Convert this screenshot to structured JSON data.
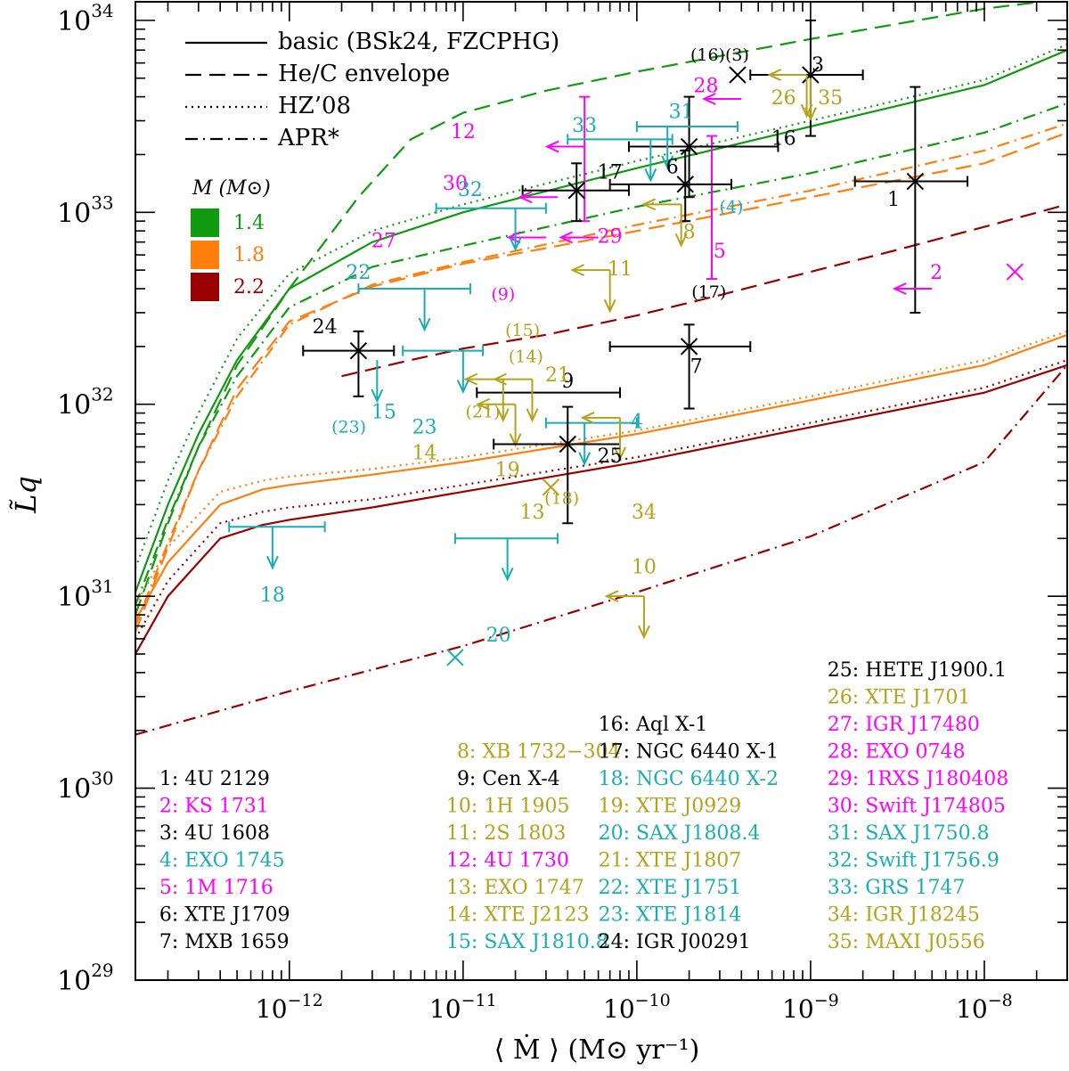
{
  "colors": {
    "m14": "#109a10",
    "m18": "#ff7f0e",
    "m22": "#990000",
    "cyan": "#1aadb4",
    "magenta": "#ff00ff",
    "olive": "#b5a21b",
    "black": "#000000"
  },
  "chart_data": {
    "type": "scatter",
    "xlabel": "⟨ Ṁ ⟩  (M⊙ yr⁻¹)",
    "ylabel": "L̃q",
    "xscale": "log",
    "yscale": "log",
    "xlim": [
      1.3e-13,
      3e-08
    ],
    "ylim": [
      1e+29,
      1.25e+34
    ],
    "xticks": [
      {
        "v": 1e-12,
        "base": "10",
        "exp": "−12"
      },
      {
        "v": 1e-11,
        "base": "10",
        "exp": "−11"
      },
      {
        "v": 1e-10,
        "base": "10",
        "exp": "−10"
      },
      {
        "v": 1e-09,
        "base": "10",
        "exp": "−9"
      },
      {
        "v": 1e-08,
        "base": "10",
        "exp": "−8"
      }
    ],
    "yticks": [
      {
        "v": 1e+29,
        "base": "10",
        "exp": "29"
      },
      {
        "v": 1e+30,
        "base": "10",
        "exp": "30"
      },
      {
        "v": 1e+31,
        "base": "10",
        "exp": "31"
      },
      {
        "v": 1e+32,
        "base": "10",
        "exp": "32"
      },
      {
        "v": 1e+33,
        "base": "10",
        "exp": "33"
      },
      {
        "v": 1e+34,
        "base": "10",
        "exp": "34"
      }
    ],
    "style_legend": [
      {
        "label": "basic (BSk24, FZCPHG)",
        "dash": "solid"
      },
      {
        "label": "He/C envelope",
        "dash": "dashed"
      },
      {
        "label": "HZ’08",
        "dash": "dotted"
      },
      {
        "label": "APR*",
        "dash": "dashdot"
      }
    ],
    "mass_legend": {
      "title": "M (M⊙)",
      "entries": [
        {
          "label": "1.4",
          "color": "m14"
        },
        {
          "label": "1.8",
          "color": "m18"
        },
        {
          "label": "2.2",
          "color": "m22"
        }
      ]
    },
    "series": [
      {
        "name": "1.4 basic",
        "color": "m14",
        "dash": "solid",
        "x": [
          1.3e-13,
          2e-13,
          3e-13,
          5e-13,
          1e-12,
          3e-12,
          1e-11,
          1e-10,
          1e-09,
          1e-08,
          3e-08
        ],
        "y": [
          1.05e+31,
          3e+31,
          7e+31,
          1.7e+32,
          4e+32,
          7e+32,
          1e+33,
          1.7e+33,
          2.8e+33,
          4.6e+33,
          7e+33
        ]
      },
      {
        "name": "1.4 HZ08",
        "color": "m14",
        "dash": "dotted",
        "x": [
          1.3e-13,
          2e-13,
          3e-13,
          5e-13,
          1e-12,
          3e-12,
          1e-11,
          1e-10,
          1e-09,
          1e-08,
          3e-08
        ],
        "y": [
          1.4e+31,
          4e+31,
          9e+31,
          2.2e+32,
          4.8e+32,
          8e+32,
          1.1e+33,
          1.85e+33,
          3e+33,
          4.9e+33,
          7.5e+33
        ]
      },
      {
        "name": "1.4 He/C",
        "color": "m14",
        "dash": "dashed",
        "x": [
          1.3e-13,
          2e-13,
          3e-13,
          5e-13,
          1e-12,
          2.5e-12,
          5e-12,
          1e-11,
          3e-11,
          1e-10,
          1e-09,
          1e-08,
          3e-08
        ],
        "y": [
          8e+30,
          2.4e+31,
          6e+31,
          1.6e+32,
          4e+32,
          1.2e+33,
          2.4e+33,
          3.3e+33,
          4.3e+33,
          5.4e+33,
          8e+33,
          1.15e+34,
          1.3e+34
        ]
      },
      {
        "name": "1.4 APR",
        "color": "m14",
        "dash": "dashdot",
        "x": [
          1.3e-13,
          2e-13,
          3e-13,
          5e-13,
          1e-12,
          3e-12,
          1e-11,
          1e-10,
          1e-09,
          1e-08,
          3e-08
        ],
        "y": [
          9e+30,
          2.5e+31,
          6e+31,
          1.4e+32,
          3.2e+32,
          5.2e+32,
          6.7e+32,
          1.07e+33,
          1.6e+33,
          2.6e+33,
          3.7e+33
        ]
      },
      {
        "name": "1.8 basic",
        "color": "m18",
        "dash": "solid",
        "x": [
          1.3e-13,
          2e-13,
          4e-13,
          7e-13,
          1e-12,
          3e-12,
          1e-11,
          1e-10,
          1e-09,
          1e-08,
          3e-08
        ],
        "y": [
          7.5e+30,
          1.5e+31,
          3e+31,
          3.6e+31,
          3.8e+31,
          4.3e+31,
          5e+31,
          7e+31,
          1.05e+32,
          1.6e+32,
          2.3e+32
        ]
      },
      {
        "name": "1.8 HZ08",
        "color": "m18",
        "dash": "dotted",
        "x": [
          1.3e-13,
          2e-13,
          4e-13,
          7e-13,
          1e-12,
          3e-12,
          1e-11,
          1e-10,
          1e-09,
          1e-08,
          3e-08
        ],
        "y": [
          9e+30,
          1.8e+31,
          3.5e+31,
          4e+31,
          4.2e+31,
          4.6e+31,
          5.3e+31,
          7.3e+31,
          1.1e+32,
          1.7e+32,
          2.4e+32
        ]
      },
      {
        "name": "1.8 He/C",
        "color": "m18",
        "dash": "dashed",
        "x": [
          1.3e-13,
          2e-13,
          3e-13,
          5e-13,
          1e-12,
          3e-12,
          1e-11,
          1e-10,
          1e-09,
          1e-08,
          3e-08
        ],
        "y": [
          6.5e+30,
          1.8e+31,
          4.5e+31,
          1.2e+32,
          2.7e+32,
          4.1e+32,
          5.4e+32,
          8e+32,
          1.2e+33,
          1.8e+33,
          2.6e+33
        ]
      },
      {
        "name": "1.8 APR",
        "color": "m18",
        "dash": "dashdot",
        "x": [
          1.3e-13,
          2e-13,
          3e-13,
          5e-13,
          1e-12,
          3e-12,
          1e-11,
          1e-10,
          1e-09,
          1e-08,
          3e-08
        ],
        "y": [
          7e+30,
          1.9e+31,
          4.5e+31,
          1.1e+32,
          2.6e+32,
          4.2e+32,
          5.5e+32,
          8.6e+32,
          1.3e+33,
          2.1e+33,
          2.9e+33
        ]
      },
      {
        "name": "2.2 basic",
        "color": "m22",
        "dash": "solid",
        "x": [
          1.3e-13,
          2e-13,
          4e-13,
          7e-13,
          1e-12,
          3e-12,
          1e-11,
          1e-10,
          1e-09,
          1e-08,
          3e-08
        ],
        "y": [
          5e+30,
          1e+31,
          2e+31,
          2.35e+31,
          2.5e+31,
          2.9e+31,
          3.5e+31,
          5e+31,
          7.6e+31,
          1.15e+32,
          1.6e+32
        ]
      },
      {
        "name": "2.2 HZ08",
        "color": "m22",
        "dash": "dotted",
        "x": [
          1.3e-13,
          2e-13,
          4e-13,
          7e-13,
          1e-12,
          3e-12,
          1e-11,
          1e-10,
          1e-09,
          1e-08,
          3e-08
        ],
        "y": [
          6e+30,
          1.2e+31,
          2.4e+31,
          2.75e+31,
          2.9e+31,
          3.2e+31,
          3.8e+31,
          5.3e+31,
          8e+31,
          1.22e+32,
          1.7e+32
        ]
      },
      {
        "name": "2.2 He/C",
        "color": "m22",
        "dash": "dashed",
        "x": [
          2e-12,
          5e-12,
          1e-11,
          3e-11,
          1e-10,
          3e-10,
          1e-09,
          3e-09,
          1e-08,
          3e-08
        ],
        "y": [
          1.4e+32,
          1.7e+32,
          1.95e+32,
          2.3e+32,
          2.9e+32,
          3.7e+32,
          4.9e+32,
          6.3e+32,
          8.4e+32,
          1.1e+33
        ]
      },
      {
        "name": "2.2 APR",
        "color": "m22",
        "dash": "dashdot",
        "x": [
          1.3e-13,
          1e-12,
          1e-11,
          1e-10,
          1e-09,
          1e-08,
          3e-08
        ],
        "y": [
          1.9e+30,
          3.2e+30,
          5.5e+30,
          1.05e+31,
          2.05e+31,
          5e+31,
          1.6e+32
        ]
      }
    ],
    "sources": [
      {
        "id": "1",
        "name": "4U 2129",
        "color": "black",
        "x": 4e-09,
        "y": 1.45e+33,
        "xerr": [
          1.8e-09,
          8e-09
        ],
        "yerr": [
          3e+32,
          4.5e+33
        ],
        "label_x": 3e-09,
        "label_y": 1.15e+33
      },
      {
        "id": "2",
        "name": "KS 1731",
        "color": "magenta",
        "x": 5e-09,
        "y": 4e+32,
        "xul": true,
        "cross": [
          1.5e-08,
          4.9e+32
        ],
        "label_x": 5.3e-09,
        "label_y": 4.8e+32
      },
      {
        "id": "3",
        "name": "4U 1608",
        "color": "black",
        "x": 1e-09,
        "y": 5.2e+33,
        "xerr": [
          4.5e-10,
          2e-09
        ],
        "yerr": [
          2.5e+33,
          1e+34
        ],
        "cross": [
          3.8e-10,
          5.2e+33
        ],
        "label_x": 1.1e-09,
        "label_y": 5.8e+33
      },
      {
        "id": "4",
        "name": "EXO 1745",
        "color": "cyan",
        "x": 5e-11,
        "y": 8e+31,
        "xerr": [
          3e-11,
          1e-10
        ],
        "yul": true,
        "label_x": 1e-10,
        "label_y": 8e+31
      },
      {
        "id": "5",
        "name": "1M 1716",
        "color": "magenta",
        "x": 2.7e-10,
        "y": 1.3e+33,
        "yerr": [
          4.5e+32,
          2.5e+33
        ],
        "label_x": 3e-10,
        "label_y": 6.2e+32
      },
      {
        "id": "6",
        "name": "XTE J1709",
        "color": "black",
        "x": 1.9e-10,
        "y": 1.4e+33,
        "xerr": [
          7e-11,
          3.5e-10
        ],
        "yerr": [
          9e+32,
          2.1e+33
        ],
        "label_x": 1.6e-10,
        "label_y": 1.7e+33
      },
      {
        "id": "7",
        "name": "MXB 1659",
        "color": "black",
        "x": 2e-10,
        "y": 2e+32,
        "xerr": [
          7e-11,
          4.5e-10
        ],
        "yerr": [
          9.5e+31,
          2.6e+32
        ],
        "label_x": 2.2e-10,
        "label_y": 1.55e+32
      },
      {
        "id": "8",
        "name": "XB 1732−304",
        "color": "olive",
        "x": 1.8e-10,
        "y": 1.1e+33,
        "xul": true,
        "yul": true,
        "label_x": 2e-10,
        "label_y": 7.8e+32
      },
      {
        "id": "9",
        "name": "Cen X-4",
        "color": "black",
        "x": 1.6e-11,
        "y": 1.15e+32,
        "xerr": [
          1.2e-11,
          8e-11
        ],
        "label_x": 4e-11,
        "label_y": 1.3e+32
      },
      {
        "id": "10",
        "name": "1H 1905",
        "color": "olive",
        "x": 1.1e-10,
        "y": 1e+31,
        "xul": true,
        "yul": true,
        "label_x": 1.1e-10,
        "label_y": 1.4e+31
      },
      {
        "id": "11",
        "name": "2S 1803",
        "color": "olive",
        "x": 7e-11,
        "y": 5e+32,
        "xul": true,
        "yul": true,
        "label_x": 8e-11,
        "label_y": 5e+32
      },
      {
        "id": "12",
        "name": "4U 1730",
        "color": "magenta",
        "x": 5e-11,
        "y": 2.2e+33,
        "xul": true,
        "yerr": [
          9e+32,
          4e+33
        ],
        "label_x": 1e-11,
        "label_y": 2.6e+33
      },
      {
        "id": "13",
        "name": "EXO 1747",
        "color": "olive",
        "x": 3.2e-11,
        "y": 3.7e+31,
        "label_x": 2.5e-11,
        "label_y": 2.7e+31
      },
      {
        "id": "14",
        "name": "XTE J2123",
        "color": "olive",
        "x": 1.7e-11,
        "y": 1.35e+32,
        "xul": true,
        "yul": true,
        "label_x": 6e-12,
        "label_y": 5.5e+31
      },
      {
        "id": "15",
        "name": "SAX J1810.8",
        "color": "cyan",
        "x": 3.2e-12,
        "y": 1.7e+32,
        "yul": true,
        "label_x": 3.5e-12,
        "label_y": 9e+31
      },
      {
        "id": "16",
        "name": "Aql X-1",
        "color": "black",
        "x": 2e-10,
        "y": 2.2e+33,
        "xerr": [
          9e-11,
          6.5e-10
        ],
        "yerr": [
          1.2e+33,
          4e+33
        ],
        "label_x": 7e-10,
        "label_y": 2.4e+33
      },
      {
        "id": "17",
        "name": "NGC 6440 X-1",
        "color": "black",
        "x": 4.5e-11,
        "y": 1.3e+33,
        "xerr": [
          2.2e-11,
          9e-11
        ],
        "yerr": [
          9e+32,
          1.8e+33
        ],
        "label_x": 7e-11,
        "label_y": 1.6e+33
      },
      {
        "id": "18",
        "name": "NGC 6440 X-2",
        "color": "cyan",
        "x": 8e-13,
        "y": 2.3e+31,
        "xerr": [
          4.5e-13,
          1.6e-12
        ],
        "yul": true,
        "label_x": 8e-13,
        "label_y": 1e+31
      },
      {
        "id": "19",
        "name": "XTE J0929",
        "color": "olive",
        "x": 2e-11,
        "y": 1e+32,
        "xul": true,
        "yul": true,
        "label_x": 1.8e-11,
        "label_y": 4.5e+31
      },
      {
        "id": "20",
        "name": "SAX J1808.4",
        "color": "cyan",
        "x": 1.8e-11,
        "y": 2e+31,
        "xerr": [
          9e-12,
          3.5e-11
        ],
        "yul": true,
        "cross": [
          9e-12,
          4.8e+30
        ],
        "label_x": 1.6e-11,
        "label_y": 6.2e+30
      },
      {
        "id": "21",
        "name": "XTE J1807",
        "color": "olive",
        "x": 2.5e-11,
        "y": 1.35e+32,
        "xul": true,
        "yul": true,
        "label_x": 3.5e-11,
        "label_y": 1.4e+32
      },
      {
        "id": "22",
        "name": "XTE J1751",
        "color": "cyan",
        "x": 6e-12,
        "y": 4e+32,
        "xerr": [
          2.5e-12,
          1.1e-11
        ],
        "yul": true,
        "label_x": 2.5e-12,
        "label_y": 4.8e+32
      },
      {
        "id": "23",
        "name": "XTE J1814",
        "color": "cyan",
        "x": 1e-11,
        "y": 1.9e+32,
        "xerr": [
          4.5e-12,
          1.3e-11
        ],
        "yul": true,
        "label_x": 6e-12,
        "label_y": 7.5e+31
      },
      {
        "id": "24",
        "name": "IGR J00291",
        "color": "black",
        "x": 2.5e-12,
        "y": 1.9e+32,
        "xerr": [
          1.2e-12,
          4e-12
        ],
        "yerr": [
          1.1e+32,
          2.4e+32
        ],
        "label_x": 1.6e-12,
        "label_y": 2.5e+32
      },
      {
        "id": "25",
        "name": "HETE J1900.1",
        "color": "black",
        "x": 4e-11,
        "y": 6.2e+31,
        "xerr": [
          1.5e-11,
          8e-11
        ],
        "yerr": [
          2.4e+31,
          9.7e+31
        ],
        "label_x": 7e-11,
        "label_y": 5.3e+31
      },
      {
        "id": "26",
        "name": "XTE J1701",
        "color": "olive",
        "x": 9.5e-10,
        "y": 5.2e+33,
        "xul": true,
        "yul": true,
        "label_x": 7e-10,
        "label_y": 3.9e+33
      },
      {
        "id": "27",
        "name": "IGR J17480",
        "color": "magenta",
        "x": 3e-11,
        "y": 7.4e+32,
        "xul": true,
        "label_x": 3.5e-12,
        "label_y": 7e+32
      },
      {
        "id": "28",
        "name": "EXO 0748",
        "color": "magenta",
        "x": 4e-10,
        "y": 3.9e+33,
        "xul": true,
        "label_x": 2.5e-10,
        "label_y": 4.5e+33
      },
      {
        "id": "29",
        "name": "1RXS J180408",
        "color": "magenta",
        "x": 6e-11,
        "y": 7.4e+32,
        "xul": true,
        "label_x": 7e-11,
        "label_y": 7.4e+32
      },
      {
        "id": "30",
        "name": "Swift J174805",
        "color": "magenta",
        "x": 3.5e-11,
        "y": 1.2e+33,
        "xul": true,
        "label_x": 9e-12,
        "label_y": 1.4e+33
      },
      {
        "id": "31",
        "name": "SAX J1750.8",
        "color": "cyan",
        "x": 1.5e-10,
        "y": 2.8e+33,
        "xerr": [
          1e-10,
          3.8e-10
        ],
        "yul": true,
        "label_x": 1.8e-10,
        "label_y": 3.3e+33
      },
      {
        "id": "32",
        "name": "Swift J1756.9",
        "color": "cyan",
        "x": 2e-11,
        "y": 1.05e+33,
        "xerr": [
          7e-12,
          3e-11
        ],
        "yul": true,
        "label_x": 1.1e-11,
        "label_y": 1.3e+33
      },
      {
        "id": "33",
        "name": "GRS 1747",
        "color": "cyan",
        "x": 1.2e-10,
        "y": 2.4e+33,
        "xerr": [
          4e-11,
          1.6e-10
        ],
        "yul": true,
        "label_x": 5e-11,
        "label_y": 2.8e+33
      },
      {
        "id": "34",
        "name": "IGR J18245",
        "color": "olive",
        "x": 8e-11,
        "y": 8.5e+31,
        "xul": true,
        "yul": true,
        "label_x": 1.1e-10,
        "label_y": 2.7e+31
      },
      {
        "id": "35",
        "name": "MAXI J0556",
        "color": "olive",
        "x": 1e-09,
        "y": 5e+33,
        "yul": true,
        "label_x": 1.3e-09,
        "label_y": 3.9e+33
      }
    ],
    "annotations": [
      {
        "text": "(16)(3)",
        "color": "black",
        "x": 3e-10,
        "y": 6.5e+33
      },
      {
        "text": "(4)",
        "color": "cyan",
        "x": 3.5e-10,
        "y": 1.05e+33
      },
      {
        "text": "(9)",
        "color": "magenta",
        "x": 1.7e-11,
        "y": 3.7e+32
      },
      {
        "text": "(17)",
        "color": "black",
        "x": 2.6e-10,
        "y": 3.8e+32
      },
      {
        "text": "(15)",
        "color": "olive",
        "x": 2.2e-11,
        "y": 2.4e+32
      },
      {
        "text": "(14)",
        "color": "olive",
        "x": 2.3e-11,
        "y": 1.75e+32
      },
      {
        "text": "(21)",
        "color": "olive",
        "x": 1.3e-11,
        "y": 9e+31
      },
      {
        "text": "(23)",
        "color": "cyan",
        "x": 2.2e-12,
        "y": 7.5e+31
      },
      {
        "text": "(18)",
        "color": "olive",
        "x": 3.7e-11,
        "y": 3.2e+31
      }
    ],
    "legend_columns": [
      {
        "x": 1.55e-13,
        "ids": [
          "1",
          "2",
          "3",
          "4",
          "5",
          "6",
          "7"
        ]
      },
      {
        "x": 8e-12,
        "ids": [
          "8",
          "9",
          "10",
          "11",
          "12",
          "13",
          "14",
          "15"
        ]
      },
      {
        "x": 6e-11,
        "ids": [
          "16",
          "17",
          "18",
          "19",
          "20",
          "21",
          "22",
          "23",
          "24"
        ]
      },
      {
        "x": 1.25e-09,
        "ids": [
          "25",
          "26",
          "27",
          "28",
          "29",
          "30",
          "31",
          "32",
          "33",
          "34",
          "35"
        ]
      }
    ]
  }
}
